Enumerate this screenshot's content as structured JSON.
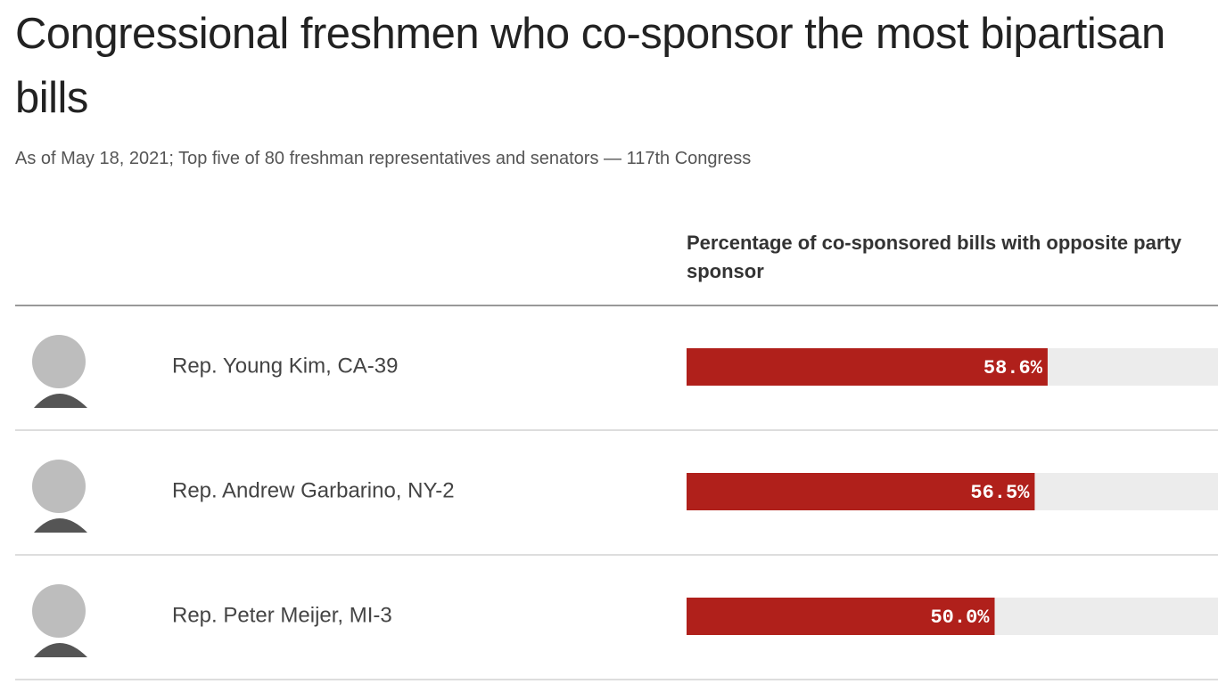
{
  "chart_data": {
    "type": "bar",
    "orientation": "horizontal",
    "title": "Congressional freshmen who co-sponsor the most bipartisan bills",
    "subtitle": "As of May 18, 2021; Top five of 80 freshman representatives and senators — 117th Congress",
    "value_header": "Percentage of co-sponsored bills with opposite party sponsor",
    "categories": [
      "Rep. Young Kim, CA-39",
      "Rep. Andrew Garbarino, NY-2",
      "Rep. Peter Meijer, MI-3"
    ],
    "values": [
      58.6,
      56.5,
      50.0
    ],
    "value_labels": [
      "58.6%",
      "56.5%",
      "50.0%"
    ],
    "color": "#b0201b",
    "track_color": "#ececec",
    "xlim": [
      0,
      100
    ]
  }
}
